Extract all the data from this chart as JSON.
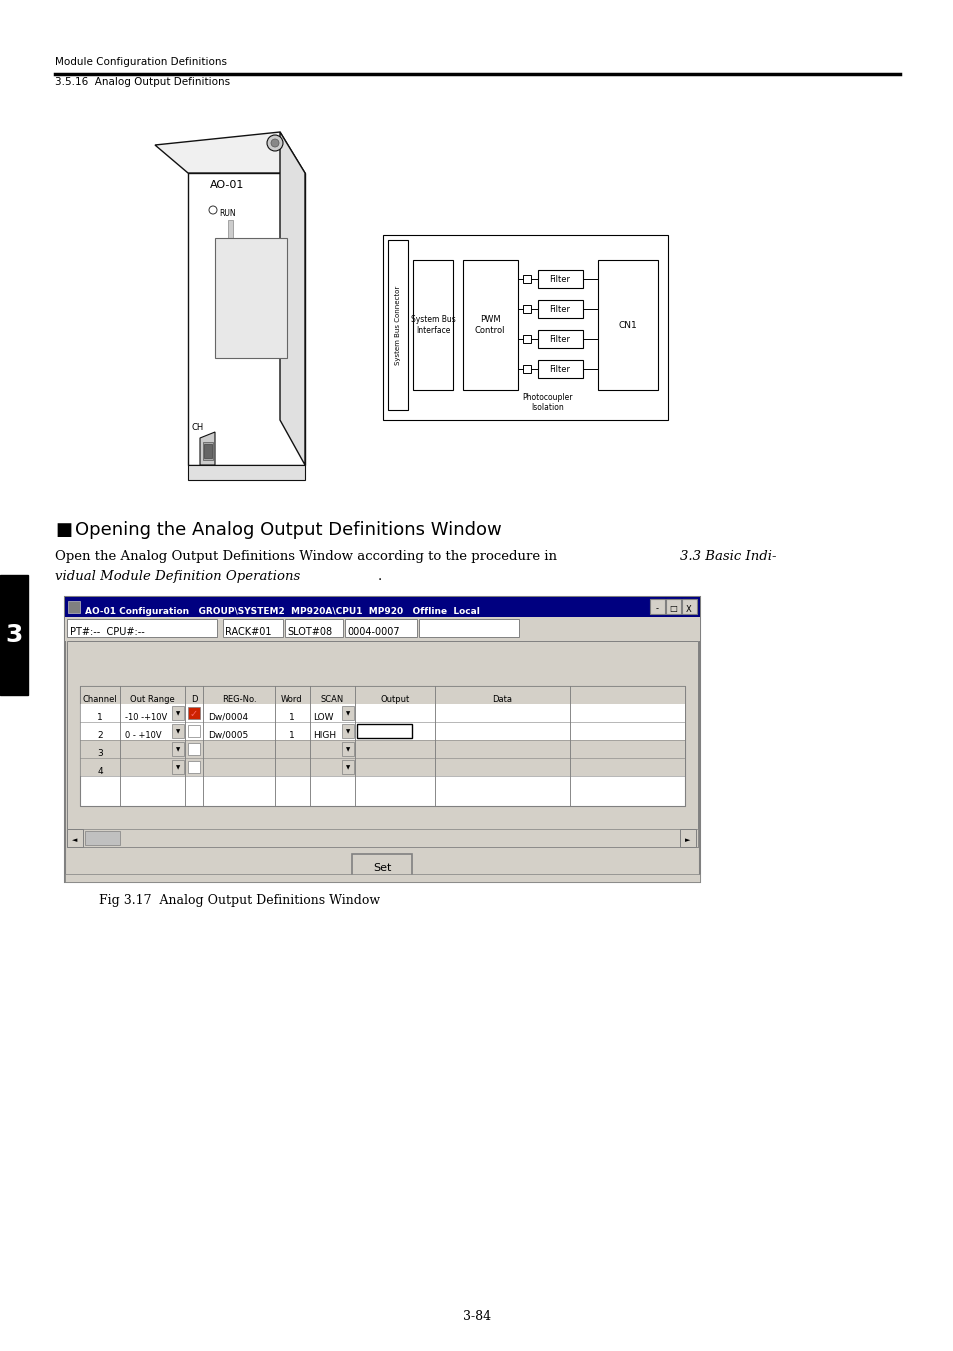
{
  "page_bg": "#ffffff",
  "header_text1": "Module Configuration Definitions",
  "header_text2": "3.5.16  Analog Output Definitions",
  "section_marker": "■",
  "section_title": "Opening the Analog Output Definitions Window",
  "body_line1": "Open the Analog Output Definitions Window according to the procedure in  3.3 Basic Indi-",
  "body_line2": "vidual Module Definition Operations .",
  "fig_caption": "Fig 3.17  Analog Output Definitions Window",
  "page_number": "3-84",
  "sidebar_number": "3",
  "window_title": "AO-01 Configuration   GROUP\\SYSTEM2  MP920A\\CPU1  MP920   Offline  Local",
  "pt_label": "PT#:--  CPU#:--",
  "rack_segments": [
    "RACK#01",
    "SLOT#08",
    "0004-0007"
  ],
  "col_headers": [
    "Channel",
    "Out Range",
    "D",
    "REG-No.",
    "Word",
    "SCAN",
    "Output",
    "Data"
  ],
  "range_row1": "-10 - +10V",
  "range_row2": "0 - +10V",
  "reg_row1": "Dw/0004",
  "reg_row2": "Dw/0005",
  "scan_row1": "LOW",
  "scan_row2": "HIGH",
  "set_button": "Set",
  "diagram_labels": {
    "system_bus_connector": "System Bus Connector",
    "system_bus_interface": "System Bus\nInterface",
    "pwm_control": "PWM\nControl",
    "filter": "Filter",
    "photocoupler": "Photocoupler\nIsolation",
    "cn1": "CN1",
    "ac01": "AO-01",
    "run": "RUN"
  }
}
